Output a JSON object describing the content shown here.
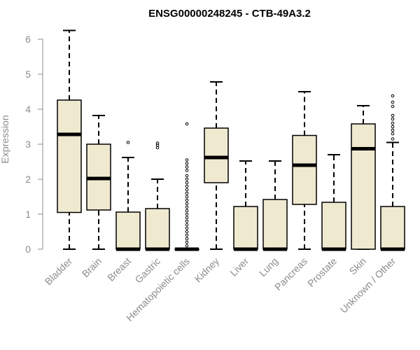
{
  "chart_data": {
    "type": "box",
    "title": "ENSG00000248245 - CTB-49A3.2",
    "xlabel": "",
    "ylabel": "Expression",
    "ylim": [
      0,
      6.3
    ],
    "yticks": [
      "0",
      "1",
      "2",
      "3",
      "4",
      "5",
      "6"
    ],
    "box_fill": "#efe9d0",
    "categories": [
      {
        "name": "Bladder",
        "whisker_low": 0,
        "q1": 1.05,
        "median": 3.28,
        "q3": 4.26,
        "whisker_high": 6.25,
        "outliers": []
      },
      {
        "name": "Brain",
        "whisker_low": 0,
        "q1": 1.12,
        "median": 2.02,
        "q3": 3.0,
        "whisker_high": 3.82,
        "outliers": []
      },
      {
        "name": "Breast",
        "whisker_low": 0,
        "q1": 0,
        "median": 0,
        "q3": 1.06,
        "whisker_high": 2.62,
        "outliers": [
          3.05
        ]
      },
      {
        "name": "Gastric",
        "whisker_low": 0,
        "q1": 0,
        "median": 0,
        "q3": 1.16,
        "whisker_high": 2.0,
        "outliers": [
          2.9,
          2.97,
          3.03
        ]
      },
      {
        "name": "Hematopoietic cells",
        "whisker_low": 0,
        "q1": 0,
        "median": 0,
        "q3": 0,
        "whisker_high": 0,
        "outliers": [
          0.1,
          0.2,
          0.3,
          0.4,
          0.5,
          0.6,
          0.7,
          0.8,
          0.9,
          1.0,
          1.1,
          1.2,
          1.3,
          1.4,
          1.5,
          1.6,
          1.7,
          1.8,
          1.9,
          2.0,
          2.1,
          2.25,
          2.35,
          2.45,
          2.55,
          3.58
        ]
      },
      {
        "name": "Kidney",
        "whisker_low": 0,
        "q1": 1.9,
        "median": 2.62,
        "q3": 3.46,
        "whisker_high": 4.78,
        "outliers": []
      },
      {
        "name": "Liver",
        "whisker_low": 0,
        "q1": 0,
        "median": 0,
        "q3": 1.22,
        "whisker_high": 2.52,
        "outliers": []
      },
      {
        "name": "Lung",
        "whisker_low": 0,
        "q1": 0,
        "median": 0,
        "q3": 1.42,
        "whisker_high": 2.52,
        "outliers": []
      },
      {
        "name": "Pancreas",
        "whisker_low": 0,
        "q1": 1.28,
        "median": 2.4,
        "q3": 3.25,
        "whisker_high": 4.5,
        "outliers": []
      },
      {
        "name": "Prostate",
        "whisker_low": 0,
        "q1": 0,
        "median": 0,
        "q3": 1.34,
        "whisker_high": 2.7,
        "outliers": []
      },
      {
        "name": "Skin",
        "whisker_low": 0,
        "q1": 0,
        "median": 2.87,
        "q3": 3.58,
        "whisker_high": 4.1,
        "outliers": []
      },
      {
        "name": "Unknown / Other",
        "whisker_low": 0,
        "q1": 0,
        "median": 0,
        "q3": 1.22,
        "whisker_high": 3.05,
        "outliers": [
          3.15,
          3.3,
          3.4,
          3.5,
          3.6,
          3.72,
          3.82,
          4.08,
          4.2,
          4.38
        ]
      }
    ]
  }
}
